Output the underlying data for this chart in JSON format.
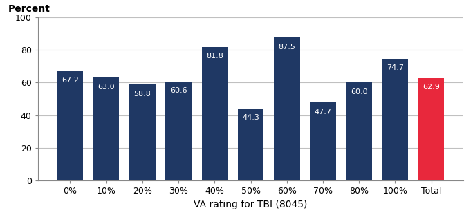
{
  "categories": [
    "0%",
    "10%",
    "20%",
    "30%",
    "40%",
    "50%",
    "60%",
    "70%",
    "80%",
    "100%",
    "Total"
  ],
  "values": [
    67.2,
    63.0,
    58.8,
    60.6,
    81.8,
    44.3,
    87.5,
    47.7,
    60.0,
    74.7,
    62.9
  ],
  "bar_colors": [
    "#1f3864",
    "#1f3864",
    "#1f3864",
    "#1f3864",
    "#1f3864",
    "#1f3864",
    "#1f3864",
    "#1f3864",
    "#1f3864",
    "#1f3864",
    "#e8283c"
  ],
  "ylabel_top": "Percent",
  "xlabel": "VA rating for TBI (8045)",
  "ylim": [
    0,
    100
  ],
  "yticks": [
    0,
    20,
    40,
    60,
    80,
    100
  ],
  "label_color": "#ffffff",
  "label_fontsize": 8.0,
  "axis_label_fontsize": 10,
  "tick_fontsize": 9,
  "background_color": "#ffffff",
  "grid_color": "#c0c0c0",
  "bar_width": 0.72
}
